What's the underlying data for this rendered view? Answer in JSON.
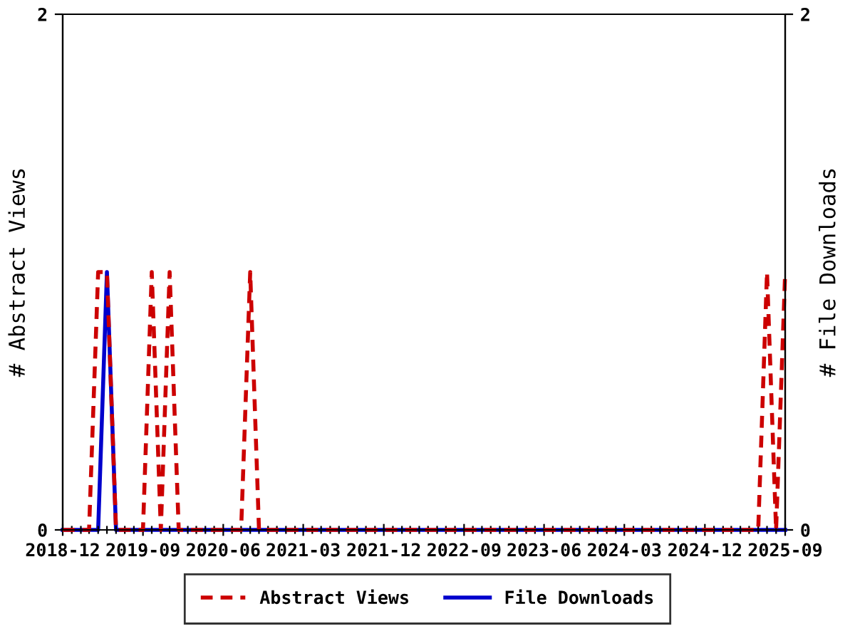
{
  "chart_data": {
    "type": "line",
    "ylabel": "# Abstract Views",
    "y2label": "# File Downloads",
    "x": [
      "2018-12",
      "2019-01",
      "2019-02",
      "2019-03",
      "2019-04",
      "2019-05",
      "2019-06",
      "2019-07",
      "2019-08",
      "2019-09",
      "2019-10",
      "2019-11",
      "2019-12",
      "2020-01",
      "2020-02",
      "2020-03",
      "2020-04",
      "2020-05",
      "2020-06",
      "2020-07",
      "2020-08",
      "2020-09",
      "2020-10",
      "2020-11",
      "2020-12",
      "2021-01",
      "2021-02",
      "2021-03",
      "2021-04",
      "2021-05",
      "2021-06",
      "2021-07",
      "2021-08",
      "2021-09",
      "2021-10",
      "2021-11",
      "2021-12",
      "2022-01",
      "2022-02",
      "2022-03",
      "2022-04",
      "2022-05",
      "2022-06",
      "2022-07",
      "2022-08",
      "2022-09",
      "2022-10",
      "2022-11",
      "2022-12",
      "2023-01",
      "2023-02",
      "2023-03",
      "2023-04",
      "2023-05",
      "2023-06",
      "2023-07",
      "2023-08",
      "2023-09",
      "2023-10",
      "2023-11",
      "2023-12",
      "2024-01",
      "2024-02",
      "2024-03",
      "2024-04",
      "2024-05",
      "2024-06",
      "2024-07",
      "2024-08",
      "2024-09",
      "2024-10",
      "2024-11",
      "2024-12",
      "2025-01",
      "2025-02",
      "2025-03",
      "2025-04",
      "2025-05",
      "2025-06",
      "2025-07",
      "2025-08",
      "2025-09"
    ],
    "series": [
      {
        "name": "Abstract Views",
        "color": "#cc0000",
        "line_style": "dashed",
        "values": [
          0,
          0,
          0,
          0,
          1,
          1,
          0,
          0,
          0,
          0,
          1,
          0,
          1,
          0,
          0,
          0,
          0,
          0,
          0,
          0,
          0,
          1,
          0,
          0,
          0,
          0,
          0,
          0,
          0,
          0,
          0,
          0,
          0,
          0,
          0,
          0,
          0,
          0,
          0,
          0,
          0,
          0,
          0,
          0,
          0,
          0,
          0,
          0,
          0,
          0,
          0,
          0,
          0,
          0,
          0,
          0,
          0,
          0,
          0,
          0,
          0,
          0,
          0,
          0,
          0,
          0,
          0,
          0,
          0,
          0,
          0,
          0,
          0,
          0,
          0,
          0,
          0,
          0,
          0,
          1,
          0,
          1
        ]
      },
      {
        "name": "File Downloads",
        "color": "#0000cc",
        "line_style": "solid",
        "axis": "y2",
        "values": [
          0,
          0,
          0,
          0,
          0,
          1,
          0,
          0,
          0,
          0,
          0,
          0,
          0,
          0,
          0,
          0,
          0,
          0,
          0,
          0,
          0,
          0,
          0,
          0,
          0,
          0,
          0,
          0,
          0,
          0,
          0,
          0,
          0,
          0,
          0,
          0,
          0,
          0,
          0,
          0,
          0,
          0,
          0,
          0,
          0,
          0,
          0,
          0,
          0,
          0,
          0,
          0,
          0,
          0,
          0,
          0,
          0,
          0,
          0,
          0,
          0,
          0,
          0,
          0,
          0,
          0,
          0,
          0,
          0,
          0,
          0,
          0,
          0,
          0,
          0,
          0,
          0,
          0,
          0,
          0,
          0,
          0
        ]
      }
    ],
    "xlim": [
      "2018-12",
      "2025-09"
    ],
    "xticks": [
      "2018-12",
      {
        "value": "2019-01",
        "label": null
      },
      {
        "value": "2019-02",
        "label": null
      },
      {
        "value": "2019-03",
        "label": null
      },
      {
        "value": "2019-04",
        "label": null
      },
      {
        "value": "2019-05",
        "label": null
      },
      {
        "value": "2019-06",
        "label": null
      },
      {
        "value": "2019-07",
        "label": null
      },
      {
        "value": "2019-08",
        "label": null
      },
      "2019-09",
      {
        "value": "2019-10",
        "label": null
      },
      {
        "value": "2019-11",
        "label": null
      },
      {
        "value": "2019-12",
        "label": null
      },
      {
        "value": "2020-01",
        "label": null
      },
      {
        "value": "2020-02",
        "label": null
      },
      {
        "value": "2020-03",
        "label": null
      },
      {
        "value": "2020-04",
        "label": null
      },
      {
        "value": "2020-05",
        "label": null
      },
      "2020-06",
      {
        "value": "2020-07",
        "label": null
      },
      {
        "value": "2020-08",
        "label": null
      },
      {
        "value": "2020-09",
        "label": null
      },
      {
        "value": "2020-10",
        "label": null
      },
      {
        "value": "2020-11",
        "label": null
      },
      {
        "value": "2020-12",
        "label": null
      },
      {
        "value": "2021-01",
        "label": null
      },
      {
        "value": "2021-02",
        "label": null
      },
      "2021-03",
      {
        "value": "2021-04",
        "label": null
      },
      {
        "value": "2021-05",
        "label": null
      },
      {
        "value": "2021-06",
        "label": null
      },
      {
        "value": "2021-07",
        "label": null
      },
      {
        "value": "2021-08",
        "label": null
      },
      {
        "value": "2021-09",
        "label": null
      },
      {
        "value": "2021-10",
        "label": null
      },
      {
        "value": "2021-11",
        "label": null
      },
      "2021-12",
      {
        "value": "2022-01",
        "label": null
      },
      {
        "value": "2022-02",
        "label": null
      },
      {
        "value": "2022-03",
        "label": null
      },
      {
        "value": "2022-04",
        "label": null
      },
      {
        "value": "2022-05",
        "label": null
      },
      {
        "value": "2022-06",
        "label": null
      },
      {
        "value": "2022-07",
        "label": null
      },
      {
        "value": "2022-08",
        "label": null
      },
      "2022-09",
      {
        "value": "2022-10",
        "label": null
      },
      {
        "value": "2022-11",
        "label": null
      },
      {
        "value": "2022-12",
        "label": null
      },
      {
        "value": "2023-01",
        "label": null
      },
      {
        "value": "2023-02",
        "label": null
      },
      {
        "value": "2023-03",
        "label": null
      },
      {
        "value": "2023-04",
        "label": null
      },
      {
        "value": "2023-05",
        "label": null
      },
      "2023-06",
      {
        "value": "2023-07",
        "label": null
      },
      {
        "value": "2023-08",
        "label": null
      },
      {
        "value": "2023-09",
        "label": null
      },
      {
        "value": "2023-10",
        "label": null
      },
      {
        "value": "2023-11",
        "label": null
      },
      {
        "value": "2023-12",
        "label": null
      },
      {
        "value": "2024-01",
        "label": null
      },
      {
        "value": "2024-02",
        "label": null
      },
      "2024-03",
      {
        "value": "2024-04",
        "label": null
      },
      {
        "value": "2024-05",
        "label": null
      },
      {
        "value": "2024-06",
        "label": null
      },
      {
        "value": "2024-07",
        "label": null
      },
      {
        "value": "2024-08",
        "label": null
      },
      {
        "value": "2024-09",
        "label": null
      },
      {
        "value": "2024-10",
        "label": null
      },
      {
        "value": "2024-11",
        "label": null
      },
      "2024-12",
      {
        "value": "2025-01",
        "label": null
      },
      {
        "value": "2025-02",
        "label": null
      },
      {
        "value": "2025-03",
        "label": null
      },
      {
        "value": "2025-04",
        "label": null
      },
      {
        "value": "2025-05",
        "label": null
      },
      {
        "value": "2025-06",
        "label": null
      },
      {
        "value": "2025-07",
        "label": null
      },
      {
        "value": "2025-08",
        "label": null
      },
      "2025-09"
    ],
    "ylim": [
      0,
      2
    ],
    "yticks": [
      0,
      2
    ],
    "y2lim": [
      0,
      2
    ],
    "y2ticks": [
      0,
      2
    ],
    "grid": false,
    "legend": "bottom",
    "marker": "none"
  }
}
